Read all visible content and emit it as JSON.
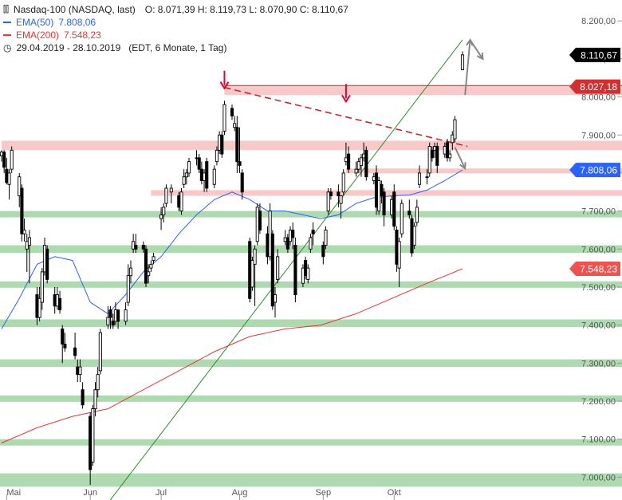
{
  "header": {
    "symbol": "Nasdaq-100 (NASDAQ, last)",
    "ohlc": "O: 8.071,39  H: 8.119,73  L: 8.070,90  C: 8.110,67",
    "ema50_label": "EMA(50)",
    "ema50_value": "7.808,06",
    "ema200_label": "EMA(200)",
    "ema200_value": "7.548,23",
    "period": "29.04.2019 - 28.10.2019",
    "period_info": "(EDT, 6 Monate, 1 Tag)"
  },
  "colors": {
    "ema50": "#2962ff",
    "ema200": "#e53935",
    "support_green": "#a5d6a7",
    "resistance_red": "#f8c6c6",
    "trendline": "#2e8b2e",
    "dashed_resistance": "#c62828",
    "arrow_red": "#e8002a",
    "arrow_gray": "#888888",
    "candle": "#000000"
  },
  "chart_data": {
    "type": "candlestick",
    "title": "Nasdaq-100 (NASDAQ, last)",
    "y_ticks": [
      "7.000,00",
      "7.100,00",
      "7.200,00",
      "7.300,00",
      "7.400,00",
      "7.500,00",
      "7.600,00",
      "7.700,00",
      "7.800,00",
      "7.900,00",
      "8.000,00",
      "8.100,00",
      "8.200,00"
    ],
    "ylim": [
      6940,
      8255
    ],
    "x_labels": [
      "Mai",
      "Jun",
      "Jul",
      "Aug",
      "Sep",
      "Okt"
    ],
    "x_label_dates": [
      "2019-05-01",
      "2019-06-03",
      "2019-07-01",
      "2019-08-01",
      "2019-09-03",
      "2019-10-01"
    ],
    "price_tags": [
      {
        "label": "8.110,67",
        "value": 8110.67,
        "style": "last"
      },
      {
        "label": "8.027,18",
        "value": 8027.18,
        "style": "resistance"
      },
      {
        "label": "7.808,06",
        "value": 7808.06,
        "style": "ema50"
      },
      {
        "label": "7.548,23",
        "value": 7548.23,
        "style": "ema200"
      }
    ],
    "support_zones": [
      {
        "from": 6975,
        "to": 7010
      },
      {
        "from": 7085,
        "to": 7100
      },
      {
        "from": 7205,
        "to": 7215
      },
      {
        "from": 7290,
        "to": 7310
      },
      {
        "from": 7395,
        "to": 7415
      },
      {
        "from": 7500,
        "to": 7515
      },
      {
        "from": 7590,
        "to": 7610
      },
      {
        "from": 7685,
        "to": 7700
      }
    ],
    "resistance_zones": [
      {
        "from": 7740,
        "to": 7755,
        "start": "2019-06-27"
      },
      {
        "from": 7800,
        "to": 7812,
        "start": "2019-09-12"
      },
      {
        "from": 7860,
        "to": 7885,
        "start": "2019-04-29"
      },
      {
        "from": 8005,
        "to": 8030,
        "start": "2019-07-26"
      }
    ],
    "trendline": [
      {
        "date": "2019-06-04",
        "value": 6880
      },
      {
        "date": "2019-10-28",
        "value": 8150
      }
    ],
    "dashed_resistance": [
      {
        "date": "2019-07-26",
        "value": 8025
      },
      {
        "date": "2019-10-30",
        "value": 7870
      }
    ],
    "red_arrows": [
      {
        "date": "2019-07-26",
        "value": 8069
      },
      {
        "date": "2019-09-12",
        "value": 8034
      }
    ],
    "gray_arrows": [
      {
        "from_date": "2019-10-29",
        "from": 8005,
        "to_date": "2019-10-31",
        "to": 8150
      },
      {
        "from_date": "2019-10-31",
        "from": 8150,
        "to_date": "2019-11-05",
        "to": 8100
      },
      {
        "from_date": "2019-10-25",
        "from": 7868,
        "to_date": "2019-10-29",
        "to": 7812
      }
    ],
    "candles": [
      [
        "2019-04-29",
        7845,
        7860,
        7830,
        7855
      ],
      [
        "2019-04-30",
        7855,
        7860,
        7800,
        7815
      ],
      [
        "2019-05-01",
        7810,
        7840,
        7770,
        7775
      ],
      [
        "2019-05-02",
        7770,
        7810,
        7730,
        7800
      ],
      [
        "2019-05-03",
        7810,
        7870,
        7800,
        7860
      ],
      [
        "2019-05-06",
        7740,
        7800,
        7710,
        7790
      ],
      [
        "2019-05-07",
        7760,
        7770,
        7620,
        7640
      ],
      [
        "2019-05-08",
        7640,
        7680,
        7620,
        7650
      ],
      [
        "2019-05-09",
        7600,
        7640,
        7540,
        7620
      ],
      [
        "2019-05-10",
        7610,
        7650,
        7510,
        7630
      ],
      [
        "2019-05-13",
        7480,
        7500,
        7400,
        7420
      ],
      [
        "2019-05-14",
        7420,
        7500,
        7410,
        7470
      ],
      [
        "2019-05-15",
        7460,
        7550,
        7440,
        7540
      ],
      [
        "2019-05-16",
        7540,
        7630,
        7530,
        7610
      ],
      [
        "2019-05-17",
        7600,
        7610,
        7510,
        7520
      ],
      [
        "2019-05-20",
        7480,
        7500,
        7430,
        7450
      ],
      [
        "2019-05-21",
        7450,
        7500,
        7440,
        7480
      ],
      [
        "2019-05-22",
        7470,
        7490,
        7430,
        7440
      ],
      [
        "2019-05-23",
        7390,
        7400,
        7300,
        7350
      ],
      [
        "2019-05-24",
        7350,
        7380,
        7330,
        7340
      ],
      [
        "2019-05-28",
        7340,
        7380,
        7310,
        7320
      ],
      [
        "2019-05-29",
        7290,
        7310,
        7250,
        7270
      ],
      [
        "2019-05-30",
        7270,
        7310,
        7250,
        7290
      ],
      [
        "2019-05-31",
        7230,
        7250,
        7180,
        7190
      ],
      [
        "2019-06-03",
        7160,
        7170,
        6980,
        7020
      ],
      [
        "2019-06-04",
        7040,
        7190,
        7030,
        7180
      ],
      [
        "2019-06-05",
        7180,
        7250,
        7160,
        7230
      ],
      [
        "2019-06-06",
        7230,
        7290,
        7210,
        7270
      ],
      [
        "2019-06-07",
        7280,
        7390,
        7270,
        7380
      ],
      [
        "2019-06-10",
        7400,
        7450,
        7390,
        7420
      ],
      [
        "2019-06-11",
        7440,
        7450,
        7390,
        7420
      ],
      [
        "2019-06-12",
        7410,
        7430,
        7390,
        7400
      ],
      [
        "2019-06-13",
        7410,
        7460,
        7400,
        7440
      ],
      [
        "2019-06-14",
        7440,
        7440,
        7390,
        7410
      ],
      [
        "2019-06-17",
        7410,
        7460,
        7400,
        7440
      ],
      [
        "2019-06-18",
        7460,
        7560,
        7450,
        7530
      ],
      [
        "2019-06-19",
        7530,
        7570,
        7510,
        7550
      ],
      [
        "2019-06-20",
        7600,
        7640,
        7590,
        7620
      ],
      [
        "2019-06-21",
        7610,
        7640,
        7590,
        7600
      ],
      [
        "2019-06-24",
        7610,
        7620,
        7590,
        7600
      ],
      [
        "2019-06-25",
        7600,
        7610,
        7500,
        7510
      ],
      [
        "2019-06-26",
        7530,
        7560,
        7510,
        7540
      ],
      [
        "2019-06-27",
        7550,
        7570,
        7540,
        7560
      ],
      [
        "2019-06-28",
        7570,
        7590,
        7560,
        7580
      ],
      [
        "2019-07-01",
        7680,
        7710,
        7650,
        7690
      ],
      [
        "2019-07-02",
        7690,
        7720,
        7670,
        7710
      ],
      [
        "2019-07-03",
        7720,
        7770,
        7710,
        7760
      ],
      [
        "2019-07-05",
        7750,
        7770,
        7720,
        7760
      ],
      [
        "2019-07-08",
        7740,
        7750,
        7700,
        7710
      ],
      [
        "2019-07-09",
        7700,
        7760,
        7690,
        7750
      ],
      [
        "2019-07-10",
        7770,
        7810,
        7760,
        7790
      ],
      [
        "2019-07-11",
        7790,
        7810,
        7770,
        7800
      ],
      [
        "2019-07-12",
        7800,
        7840,
        7790,
        7830
      ],
      [
        "2019-07-15",
        7840,
        7860,
        7820,
        7840
      ],
      [
        "2019-07-16",
        7840,
        7850,
        7800,
        7810
      ],
      [
        "2019-07-17",
        7810,
        7830,
        7770,
        7780
      ],
      [
        "2019-07-18",
        7780,
        7810,
        7750,
        7800
      ],
      [
        "2019-07-19",
        7830,
        7840,
        7750,
        7760
      ],
      [
        "2019-07-22",
        7770,
        7820,
        7760,
        7810
      ],
      [
        "2019-07-23",
        7830,
        7870,
        7820,
        7860
      ],
      [
        "2019-07-24",
        7860,
        7910,
        7850,
        7900
      ],
      [
        "2019-07-25",
        7900,
        7910,
        7840,
        7850
      ],
      [
        "2019-07-26",
        7910,
        7990,
        7900,
        7980
      ],
      [
        "2019-07-29",
        7970,
        7980,
        7940,
        7950
      ],
      [
        "2019-07-30",
        7920,
        7950,
        7910,
        7930
      ],
      [
        "2019-07-31",
        7920,
        7950,
        7800,
        7830
      ],
      [
        "2019-08-01",
        7830,
        7920,
        7800,
        7820
      ],
      [
        "2019-08-02",
        7800,
        7810,
        7730,
        7750
      ],
      [
        "2019-08-05",
        7620,
        7630,
        7460,
        7470
      ],
      [
        "2019-08-06",
        7500,
        7580,
        7490,
        7570
      ],
      [
        "2019-08-07",
        7560,
        7610,
        7450,
        7600
      ],
      [
        "2019-08-08",
        7620,
        7720,
        7610,
        7710
      ],
      [
        "2019-08-09",
        7700,
        7720,
        7640,
        7650
      ],
      [
        "2019-08-12",
        7640,
        7660,
        7560,
        7580
      ],
      [
        "2019-08-13",
        7580,
        7720,
        7570,
        7700
      ],
      [
        "2019-08-14",
        7640,
        7650,
        7440,
        7450
      ],
      [
        "2019-08-15",
        7460,
        7500,
        7420,
        7480
      ],
      [
        "2019-08-16",
        7520,
        7600,
        7510,
        7580
      ],
      [
        "2019-08-19",
        7620,
        7650,
        7610,
        7630
      ],
      [
        "2019-08-20",
        7630,
        7640,
        7590,
        7600
      ],
      [
        "2019-08-21",
        7620,
        7660,
        7610,
        7650
      ],
      [
        "2019-08-22",
        7650,
        7670,
        7600,
        7630
      ],
      [
        "2019-08-23",
        7610,
        7630,
        7460,
        7480
      ],
      [
        "2019-08-26",
        7510,
        7560,
        7500,
        7550
      ],
      [
        "2019-08-27",
        7570,
        7580,
        7520,
        7530
      ],
      [
        "2019-08-28",
        7520,
        7560,
        7510,
        7550
      ],
      [
        "2019-08-29",
        7600,
        7640,
        7590,
        7630
      ],
      [
        "2019-08-30",
        7650,
        7670,
        7610,
        7640
      ],
      [
        "2019-09-03",
        7610,
        7620,
        7560,
        7580
      ],
      [
        "2019-09-04",
        7610,
        7660,
        7600,
        7650
      ],
      [
        "2019-09-05",
        7700,
        7760,
        7690,
        7750
      ],
      [
        "2019-09-06",
        7750,
        7760,
        7730,
        7740
      ],
      [
        "2019-09-09",
        7750,
        7770,
        7710,
        7740
      ],
      [
        "2019-09-10",
        7720,
        7740,
        7680,
        7740
      ],
      [
        "2019-09-11",
        7750,
        7810,
        7740,
        7800
      ],
      [
        "2019-09-12",
        7830,
        7880,
        7820,
        7840
      ],
      [
        "2019-09-13",
        7850,
        7870,
        7800,
        7810
      ],
      [
        "2019-09-16",
        7800,
        7830,
        7790,
        7810
      ],
      [
        "2019-09-17",
        7810,
        7840,
        7800,
        7830
      ],
      [
        "2019-09-18",
        7820,
        7850,
        7790,
        7840
      ],
      [
        "2019-09-19",
        7840,
        7880,
        7830,
        7850
      ],
      [
        "2019-09-20",
        7860,
        7870,
        7780,
        7790
      ],
      [
        "2019-09-23",
        7780,
        7800,
        7770,
        7790
      ],
      [
        "2019-09-24",
        7800,
        7820,
        7690,
        7710
      ],
      [
        "2019-09-25",
        7700,
        7790,
        7690,
        7780
      ],
      [
        "2019-09-26",
        7770,
        7780,
        7720,
        7740
      ],
      [
        "2019-09-27",
        7750,
        7760,
        7660,
        7690
      ],
      [
        "2019-09-30",
        7690,
        7740,
        7680,
        7730
      ],
      [
        "2019-10-01",
        7750,
        7770,
        7650,
        7660
      ],
      [
        "2019-10-02",
        7650,
        7660,
        7540,
        7560
      ],
      [
        "2019-10-03",
        7550,
        7630,
        7500,
        7620
      ],
      [
        "2019-10-04",
        7640,
        7730,
        7630,
        7720
      ],
      [
        "2019-10-07",
        7700,
        7730,
        7680,
        7690
      ],
      [
        "2019-10-08",
        7680,
        7690,
        7580,
        7590
      ],
      [
        "2019-10-09",
        7610,
        7670,
        7600,
        7660
      ],
      [
        "2019-10-10",
        7670,
        7730,
        7660,
        7710
      ],
      [
        "2019-10-11",
        7770,
        7820,
        7760,
        7800
      ],
      [
        "2019-10-14",
        7790,
        7810,
        7770,
        7790
      ],
      [
        "2019-10-15",
        7800,
        7880,
        7790,
        7870
      ],
      [
        "2019-10-16",
        7860,
        7870,
        7830,
        7840
      ],
      [
        "2019-10-17",
        7860,
        7880,
        7840,
        7870
      ],
      [
        "2019-10-18",
        7870,
        7880,
        7800,
        7820
      ],
      [
        "2019-10-21",
        7850,
        7880,
        7840,
        7870
      ],
      [
        "2019-10-22",
        7880,
        7890,
        7830,
        7840
      ],
      [
        "2019-10-23",
        7840,
        7860,
        7830,
        7850
      ],
      [
        "2019-10-24",
        7880,
        7910,
        7860,
        7900
      ],
      [
        "2019-10-25",
        7890,
        7950,
        7880,
        7940
      ],
      [
        "2019-10-28",
        8071.39,
        8119.73,
        8070.9,
        8110.67
      ]
    ],
    "ema50": [
      [
        "2019-04-29",
        7390
      ],
      [
        "2019-05-06",
        7470
      ],
      [
        "2019-05-13",
        7560
      ],
      [
        "2019-05-20",
        7580
      ],
      [
        "2019-05-27",
        7570
      ],
      [
        "2019-06-03",
        7460
      ],
      [
        "2019-06-10",
        7430
      ],
      [
        "2019-06-17",
        7480
      ],
      [
        "2019-06-24",
        7540
      ],
      [
        "2019-07-01",
        7580
      ],
      [
        "2019-07-08",
        7640
      ],
      [
        "2019-07-15",
        7690
      ],
      [
        "2019-07-22",
        7730
      ],
      [
        "2019-07-29",
        7750
      ],
      [
        "2019-08-05",
        7730
      ],
      [
        "2019-08-12",
        7700
      ],
      [
        "2019-08-19",
        7700
      ],
      [
        "2019-08-26",
        7690
      ],
      [
        "2019-09-02",
        7680
      ],
      [
        "2019-09-09",
        7690
      ],
      [
        "2019-09-16",
        7720
      ],
      [
        "2019-09-23",
        7735
      ],
      [
        "2019-09-30",
        7740
      ],
      [
        "2019-10-07",
        7742
      ],
      [
        "2019-10-14",
        7755
      ],
      [
        "2019-10-21",
        7780
      ],
      [
        "2019-10-28",
        7808.06
      ]
    ],
    "ema200": [
      [
        "2019-04-29",
        7090
      ],
      [
        "2019-05-13",
        7130
      ],
      [
        "2019-05-27",
        7160
      ],
      [
        "2019-06-10",
        7180
      ],
      [
        "2019-06-24",
        7230
      ],
      [
        "2019-07-08",
        7280
      ],
      [
        "2019-07-22",
        7330
      ],
      [
        "2019-08-05",
        7370
      ],
      [
        "2019-08-19",
        7390
      ],
      [
        "2019-09-02",
        7400
      ],
      [
        "2019-09-16",
        7430
      ],
      [
        "2019-09-30",
        7470
      ],
      [
        "2019-10-14",
        7510
      ],
      [
        "2019-10-28",
        7548.23
      ]
    ]
  }
}
